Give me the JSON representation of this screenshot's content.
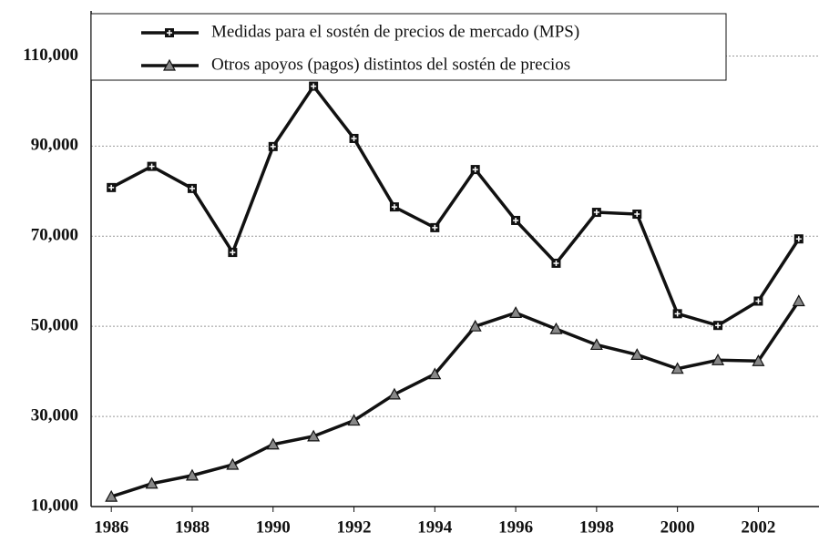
{
  "chart_data": {
    "type": "line",
    "x": [
      1986,
      1987,
      1988,
      1989,
      1990,
      1991,
      1992,
      1993,
      1994,
      1995,
      1996,
      1997,
      1998,
      1999,
      2000,
      2001,
      2002,
      2003
    ],
    "series": [
      {
        "name": "Medidas para el sostén de precios de mercado (MPS)",
        "color": "#111111",
        "marker": "square",
        "values": [
          80800,
          85500,
          80600,
          66400,
          89900,
          103300,
          91700,
          76500,
          71900,
          84800,
          73500,
          64000,
          75300,
          74900,
          52800,
          50200,
          55600,
          69400
        ]
      },
      {
        "name": "Otros apoyos (pagos) distintos del sostén de precios",
        "color": "#111111",
        "marker": "triangle",
        "values": [
          12200,
          15100,
          16900,
          19300,
          23800,
          25600,
          29100,
          34900,
          39400,
          50000,
          53000,
          49400,
          45900,
          43700,
          40600,
          42500,
          42300,
          55600
        ]
      }
    ],
    "xlim": [
      1985.5,
      2003.5
    ],
    "xticks": [
      1986,
      1988,
      1990,
      1992,
      1994,
      1996,
      1998,
      2000,
      2002
    ],
    "ylim": [
      10000,
      120000
    ],
    "yticks": [
      {
        "value": 10000,
        "label": "10,000"
      },
      {
        "value": 30000,
        "label": "30,000"
      },
      {
        "value": 50000,
        "label": "50,000"
      },
      {
        "value": 70000,
        "label": "70,000"
      },
      {
        "value": 90000,
        "label": "90,000"
      },
      {
        "value": 110000,
        "label": "110,000"
      }
    ],
    "grid": true,
    "legend": "top-left"
  }
}
